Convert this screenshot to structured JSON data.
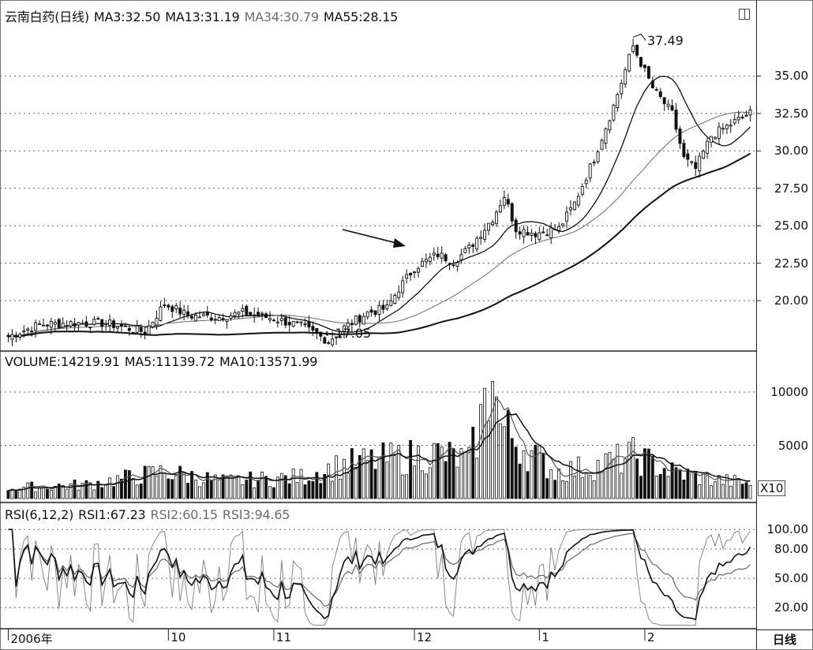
{
  "price_panel": {
    "name": "云南白药(日线)",
    "ma_labels": [
      "MA3:32.50",
      "MA13:31.19",
      "MA34:30.79",
      "MA55:28.15"
    ],
    "high_label": "37.49",
    "low_label": "17.05",
    "low_arrow": "←"
  },
  "volume_panel": {
    "labels": [
      "VOLUME:14219.91",
      "MA5:11139.72",
      "MA10:13571.99"
    ],
    "scale_badge": "X10"
  },
  "rsi_panel": {
    "labels": [
      "RSI(6,12,2)",
      "RSI1:67.23",
      "RSI2:60.15",
      "RSI3:94.65"
    ]
  },
  "corner_label": "日线",
  "colors": {
    "background": "#ffffff",
    "ink": "#111111",
    "muted": "#888888",
    "grid": "#666666"
  },
  "icons": {
    "panel_toggle": "window-toggle-icon",
    "annotation_arrow": "arrow-icon"
  },
  "chart_data": [
    {
      "type": "line",
      "title": "云南白药(日线)",
      "subtype": "candlestick",
      "y_ticks": [
        "35.00",
        "32.50",
        "30.00",
        "27.50",
        "25.00",
        "22.50",
        "20.00"
      ],
      "ylim": [
        17,
        38.5
      ],
      "grid": true,
      "x_ticks": [
        "2006年",
        "10",
        "11",
        "12",
        "1",
        "2"
      ],
      "close_key_points": [
        [
          0,
          17.6
        ],
        [
          8,
          18.4
        ],
        [
          15,
          18.5
        ],
        [
          25,
          18.5
        ],
        [
          35,
          17.9
        ],
        [
          40,
          19.8
        ],
        [
          46,
          19.0
        ],
        [
          54,
          18.9
        ],
        [
          60,
          19.2
        ],
        [
          68,
          18.8
        ],
        [
          75,
          18.3
        ],
        [
          82,
          17.3
        ],
        [
          86,
          18.2
        ],
        [
          92,
          19.2
        ],
        [
          97,
          19.5
        ],
        [
          100,
          20.8
        ],
        [
          104,
          22.2
        ],
        [
          110,
          23.1
        ],
        [
          114,
          22.6
        ],
        [
          118,
          23.5
        ],
        [
          124,
          25.5
        ],
        [
          127,
          27.0
        ],
        [
          130,
          24.8
        ],
        [
          135,
          24.5
        ],
        [
          141,
          24.8
        ],
        [
          145,
          26.5
        ],
        [
          150,
          29.5
        ],
        [
          155,
          33.0
        ],
        [
          160,
          37.0
        ],
        [
          165,
          34.2
        ],
        [
          170,
          32.5
        ],
        [
          173,
          29.5
        ],
        [
          176,
          28.8
        ],
        [
          180,
          31.0
        ],
        [
          185,
          31.8
        ],
        [
          190,
          32.5
        ]
      ],
      "series": [
        {
          "name": "MA3",
          "last": 32.5
        },
        {
          "name": "MA13",
          "last": 31.19
        },
        {
          "name": "MA34",
          "last": 30.79
        },
        {
          "name": "MA55",
          "last": 28.15
        }
      ],
      "annotations": [
        {
          "text": "37.49",
          "note": "period high"
        },
        {
          "text": "17.05",
          "note": "period low"
        }
      ]
    },
    {
      "type": "bar",
      "title": "VOLUME",
      "y_ticks": [
        "10000",
        "5000"
      ],
      "ylim": [
        0,
        12000
      ],
      "scale_multiplier": "X10",
      "volume_key_points": [
        [
          0,
          1000
        ],
        [
          20,
          1300
        ],
        [
          40,
          2500
        ],
        [
          55,
          1600
        ],
        [
          75,
          2000
        ],
        [
          86,
          3200
        ],
        [
          100,
          3800
        ],
        [
          110,
          4200
        ],
        [
          118,
          3500
        ],
        [
          124,
          11000
        ],
        [
          126,
          6800
        ],
        [
          134,
          4200
        ],
        [
          140,
          2500
        ],
        [
          150,
          3000
        ],
        [
          160,
          4000
        ],
        [
          170,
          2500
        ],
        [
          180,
          1800
        ],
        [
          190,
          1400
        ]
      ],
      "series": [
        {
          "name": "VOLUME",
          "last": 14219.91
        },
        {
          "name": "MA5",
          "last": 11139.72
        },
        {
          "name": "MA10",
          "last": 13571.99
        }
      ]
    },
    {
      "type": "line",
      "title": "RSI(6,12,2)",
      "y_ticks": [
        "100.00",
        "80.00",
        "50.00",
        "20.00"
      ],
      "ylim": [
        0,
        105
      ],
      "series": [
        {
          "name": "RSI1",
          "last": 67.23
        },
        {
          "name": "RSI2",
          "last": 60.15
        },
        {
          "name": "RSI3",
          "last": 94.65
        }
      ]
    }
  ]
}
